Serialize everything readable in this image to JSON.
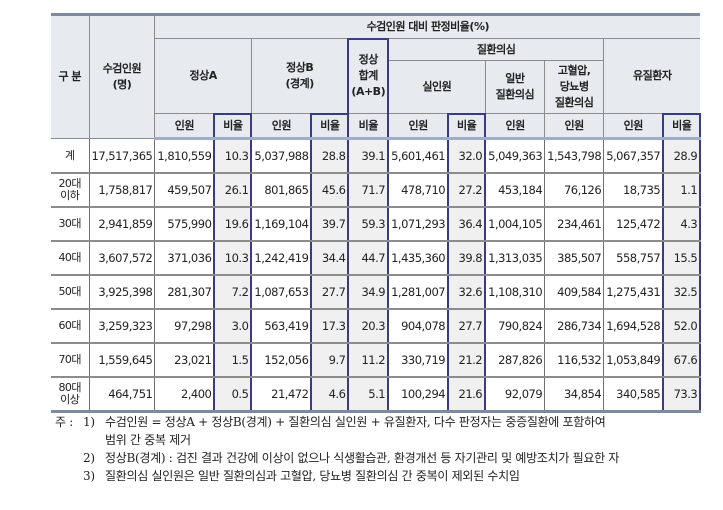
{
  "table": {
    "header": {
      "category": "구 분",
      "examinees": "수검인원\n(명)",
      "group_title": "수검인원 대비 판정비율(%)",
      "normal_a": "정상A",
      "normal_b": "정상B\n(경계)",
      "normal_total": "정상\n합계\n(A+B)",
      "disease_suspect": "질환의심",
      "actual": "실인원",
      "general_suspect": "일반\n질환의심",
      "bp_diabetes_suspect": "고혈압,\n당뇨병\n질환의심",
      "has_disease": "유질환자",
      "sub": {
        "count": "인원",
        "ratio": "비율"
      }
    },
    "rows": [
      {
        "label": "계",
        "examinees": "17,517,365",
        "a_count": "1,810,559",
        "a_ratio": "10.3",
        "b_count": "5,037,988",
        "b_ratio": "28.8",
        "total_ratio": "39.1",
        "actual_count": "5,601,461",
        "actual_ratio": "32.0",
        "general_count": "5,049,363",
        "bpdm_count": "1,543,798",
        "disease_count": "5,067,357",
        "disease_ratio": "28.9"
      },
      {
        "label": "20대\n이하",
        "examinees": "1,758,817",
        "a_count": "459,507",
        "a_ratio": "26.1",
        "b_count": "801,865",
        "b_ratio": "45.6",
        "total_ratio": "71.7",
        "actual_count": "478,710",
        "actual_ratio": "27.2",
        "general_count": "453,184",
        "bpdm_count": "76,126",
        "disease_count": "18,735",
        "disease_ratio": "1.1"
      },
      {
        "label": "30대",
        "examinees": "2,941,859",
        "a_count": "575,990",
        "a_ratio": "19.6",
        "b_count": "1,169,104",
        "b_ratio": "39.7",
        "total_ratio": "59.3",
        "actual_count": "1,071,293",
        "actual_ratio": "36.4",
        "general_count": "1,004,105",
        "bpdm_count": "234,461",
        "disease_count": "125,472",
        "disease_ratio": "4.3"
      },
      {
        "label": "40대",
        "examinees": "3,607,572",
        "a_count": "371,036",
        "a_ratio": "10.3",
        "b_count": "1,242,419",
        "b_ratio": "34.4",
        "total_ratio": "44.7",
        "actual_count": "1,435,360",
        "actual_ratio": "39.8",
        "general_count": "1,313,035",
        "bpdm_count": "385,507",
        "disease_count": "558,757",
        "disease_ratio": "15.5"
      },
      {
        "label": "50대",
        "examinees": "3,925,398",
        "a_count": "281,307",
        "a_ratio": "7.2",
        "b_count": "1,087,653",
        "b_ratio": "27.7",
        "total_ratio": "34.9",
        "actual_count": "1,281,007",
        "actual_ratio": "32.6",
        "general_count": "1,108,310",
        "bpdm_count": "409,584",
        "disease_count": "1,275,431",
        "disease_ratio": "32.5"
      },
      {
        "label": "60대",
        "examinees": "3,259,323",
        "a_count": "97,298",
        "a_ratio": "3.0",
        "b_count": "563,419",
        "b_ratio": "17.3",
        "total_ratio": "20.3",
        "actual_count": "904,078",
        "actual_ratio": "27.7",
        "general_count": "790,824",
        "bpdm_count": "286,734",
        "disease_count": "1,694,528",
        "disease_ratio": "52.0"
      },
      {
        "label": "70대",
        "examinees": "1,559,645",
        "a_count": "23,021",
        "a_ratio": "1.5",
        "b_count": "152,056",
        "b_ratio": "9.7",
        "total_ratio": "11.2",
        "actual_count": "330,719",
        "actual_ratio": "21.2",
        "general_count": "287,826",
        "bpdm_count": "116,532",
        "disease_count": "1,053,849",
        "disease_ratio": "67.6"
      },
      {
        "label": "80대\n이상",
        "examinees": "464,751",
        "a_count": "2,400",
        "a_ratio": "0.5",
        "b_count": "21,472",
        "b_ratio": "4.6",
        "total_ratio": "5.1",
        "actual_count": "100,294",
        "actual_ratio": "21.6",
        "general_count": "92,079",
        "bpdm_count": "34,854",
        "disease_count": "340,585",
        "disease_ratio": "73.3"
      }
    ]
  },
  "notes": {
    "prefix": "주 :",
    "items": [
      {
        "num": "1)",
        "lines": [
          "수검인원 = 정상A + 정상B(경계) + 질환의심 실인원 + 유질환자, 다수 판정자는 중증질환에 포함하여",
          "범위 간 중복 제거"
        ]
      },
      {
        "num": "2)",
        "lines": [
          "정상B(경계) : 검진 결과 건강에 이상이 없으나 식생활습관, 환경개선 등 자기관리 및 예방조치가 필요한 자"
        ]
      },
      {
        "num": "3)",
        "lines": [
          "질환의심 실인원은 일반 질환의심과 고혈압, 당뇨병 질환의심 간 중복이 제외된 수치임"
        ]
      }
    ]
  },
  "colors": {
    "header_bg": "#e7ebf0",
    "ratio_bg": "#f0f0f0",
    "ratio_border": "#3b3a86",
    "table_top_border": "#7d8ba1"
  }
}
